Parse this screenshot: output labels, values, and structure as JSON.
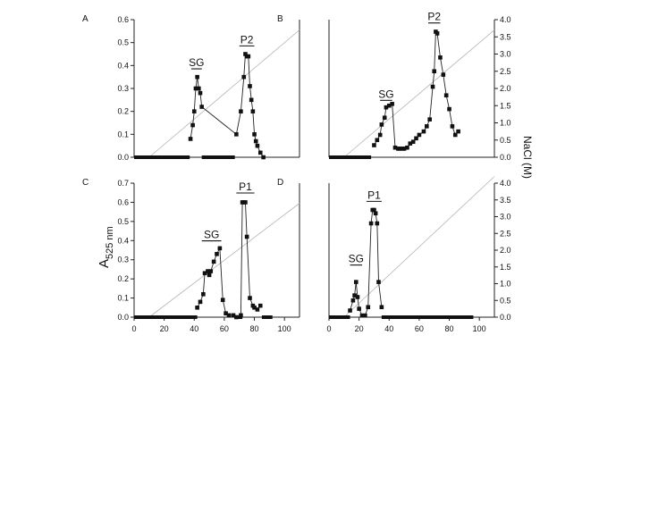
{
  "figure": {
    "ylabel_left": "A",
    "ylabel_left_sub": "525 nm",
    "ylabel_right": "NaCl (M)"
  },
  "chart_data": [
    {
      "panel": "A",
      "type": "scatter",
      "xlim": [
        0,
        110
      ],
      "xticks": [],
      "ylim": [
        0,
        0.6
      ],
      "yticks": [
        0.0,
        0.1,
        0.2,
        0.3,
        0.4,
        0.5,
        0.6
      ],
      "ytick_labels": [
        "0.0",
        "0.1",
        "0.2",
        "0.3",
        "0.4",
        "0.5",
        "0.6"
      ],
      "y2lim": [
        0,
        4.0
      ],
      "y2ticks": [],
      "baseline_segments": [
        [
          0,
          37
        ],
        [
          45,
          67
        ]
      ],
      "peaks": [
        {
          "label": "SG",
          "x_range": [
            38,
            45
          ],
          "y": 0.37
        },
        {
          "label": "P2",
          "x_range": [
            70,
            80
          ],
          "y": 0.47
        }
      ],
      "gradient": {
        "x": [
          10,
          110
        ],
        "y": [
          0,
          3.7
        ]
      },
      "x": [
        37.5,
        39,
        40,
        41,
        42,
        43,
        44,
        45,
        68,
        71,
        73,
        74,
        75,
        76,
        77,
        78,
        79,
        80,
        81,
        82,
        84,
        86
      ],
      "y": [
        0.08,
        0.14,
        0.2,
        0.3,
        0.35,
        0.3,
        0.28,
        0.22,
        0.1,
        0.2,
        0.35,
        0.45,
        0.44,
        0.44,
        0.31,
        0.25,
        0.2,
        0.1,
        0.07,
        0.05,
        0.02,
        0.0
      ]
    },
    {
      "panel": "B",
      "type": "scatter",
      "xlim": [
        0,
        110
      ],
      "xticks": [],
      "ylim": [
        0,
        4.0
      ],
      "yticks": [],
      "y2lim": [
        0,
        4.0
      ],
      "y2ticks": [
        0.0,
        0.5,
        1.0,
        1.5,
        2.0,
        2.5,
        3.0,
        3.5,
        4.0
      ],
      "y2tick_labels": [
        "0.0",
        "0.5",
        "1.0",
        "1.5",
        "2.0",
        "2.5",
        "3.0",
        "3.5",
        "4.0"
      ],
      "baseline_segments": [
        [
          0,
          28
        ]
      ],
      "peaks": [
        {
          "label": "SG",
          "x_range": [
            34,
            42
          ],
          "y": 1.55
        },
        {
          "label": "P2",
          "x_range": [
            66,
            74
          ],
          "y": 3.8
        }
      ],
      "gradient": {
        "x": [
          10,
          110
        ],
        "y": [
          0,
          3.7
        ]
      },
      "x": [
        30,
        32,
        34,
        35,
        37,
        38,
        40,
        42,
        44,
        46,
        47,
        49,
        50,
        52,
        54,
        56,
        58,
        60,
        63,
        65,
        67,
        69,
        70,
        71,
        72,
        74,
        76,
        78,
        80,
        82,
        84,
        86
      ],
      "y": [
        0.35,
        0.5,
        0.65,
        0.95,
        1.15,
        1.45,
        1.5,
        1.55,
        0.28,
        0.25,
        0.25,
        0.25,
        0.25,
        0.28,
        0.4,
        0.45,
        0.55,
        0.65,
        0.75,
        0.9,
        1.1,
        2.05,
        2.5,
        3.65,
        3.6,
        2.9,
        2.4,
        1.8,
        1.4,
        0.9,
        0.65,
        0.75
      ]
    },
    {
      "panel": "C",
      "type": "scatter",
      "xlim": [
        0,
        110
      ],
      "xticks": [
        0,
        20,
        40,
        60,
        80,
        100
      ],
      "xtick_labels": [
        "0",
        "20",
        "40",
        "60",
        "80",
        "100"
      ],
      "ylim": [
        0,
        0.7
      ],
      "yticks": [
        0.0,
        0.1,
        0.2,
        0.3,
        0.4,
        0.5,
        0.6,
        0.7
      ],
      "ytick_labels": [
        "0.0",
        "0.1",
        "0.2",
        "0.3",
        "0.4",
        "0.5",
        "0.6",
        "0.7"
      ],
      "y2lim": [
        0,
        4.0
      ],
      "y2ticks": [],
      "baseline_segments": [
        [
          0,
          42
        ],
        [
          67,
          72
        ],
        [
          85,
          92
        ]
      ],
      "peaks": [
        {
          "label": "SG",
          "x_range": [
            45,
            58
          ],
          "y": 0.38
        },
        {
          "label": "P1",
          "x_range": [
            68,
            80
          ],
          "y": 0.63
        }
      ],
      "gradient": {
        "x": [
          10,
          110
        ],
        "y": [
          0,
          3.4
        ]
      },
      "x": [
        42,
        44,
        46,
        47,
        49,
        50,
        51,
        53,
        55,
        57,
        59,
        61,
        63,
        66,
        68,
        71,
        72,
        73,
        74,
        75,
        77,
        79,
        80,
        82,
        84
      ],
      "y": [
        0.05,
        0.08,
        0.12,
        0.23,
        0.24,
        0.22,
        0.24,
        0.29,
        0.33,
        0.36,
        0.09,
        0.02,
        0.01,
        0.01,
        0.0,
        0.01,
        0.6,
        0.6,
        0.6,
        0.42,
        0.1,
        0.06,
        0.05,
        0.04,
        0.06
      ]
    },
    {
      "panel": "D",
      "type": "scatter",
      "xlim": [
        0,
        110
      ],
      "xticks": [
        0,
        20,
        40,
        60,
        80,
        100
      ],
      "xtick_labels": [
        "0",
        "20",
        "40",
        "60",
        "80",
        "100"
      ],
      "ylim": [
        0,
        4.0
      ],
      "yticks": [],
      "y2lim": [
        0,
        4.0
      ],
      "y2ticks": [
        0.0,
        0.5,
        1.0,
        1.5,
        2.0,
        2.5,
        3.0,
        3.5,
        4.0
      ],
      "y2tick_labels": [
        "0.0",
        "0.5",
        "1.0",
        "1.5",
        "2.0",
        "2.5",
        "3.0",
        "3.5",
        "4.0"
      ],
      "baseline_segments": [
        [
          0,
          14
        ],
        [
          35,
          96
        ]
      ],
      "peaks": [
        {
          "label": "SG",
          "x_range": [
            14,
            22
          ],
          "y": 1.45
        },
        {
          "label": "P1",
          "x_range": [
            25,
            35
          ],
          "y": 3.35
        }
      ],
      "gradient": {
        "x": [
          10,
          110
        ],
        "y": [
          0,
          4.2
        ]
      },
      "x": [
        14,
        16,
        17,
        18,
        19,
        20,
        22,
        24,
        26,
        28,
        29,
        30,
        31,
        32,
        33,
        35
      ],
      "y": [
        0.2,
        0.5,
        0.65,
        1.05,
        0.6,
        0.25,
        0.05,
        0.05,
        0.3,
        2.8,
        3.2,
        3.2,
        3.1,
        2.8,
        1.05,
        0.3
      ]
    }
  ]
}
